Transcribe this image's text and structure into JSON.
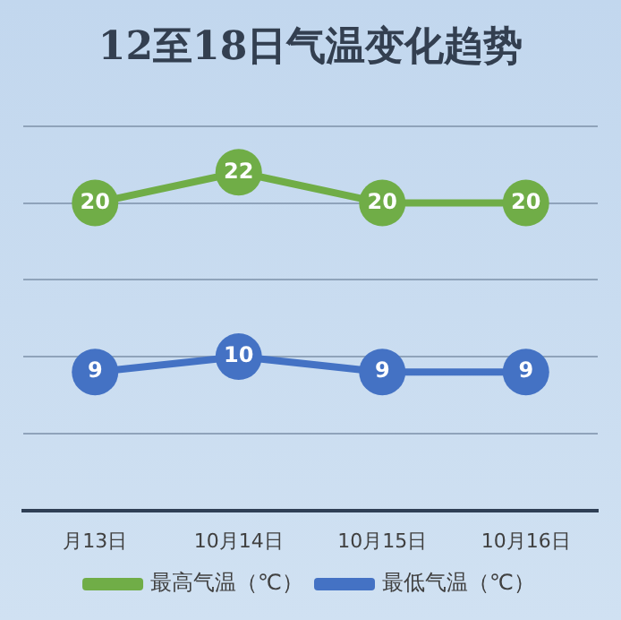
{
  "chart_data": {
    "type": "line",
    "title": "12至18日气温变化趋势",
    "categories": [
      "月13日",
      "10月14日",
      "10月15日",
      "10月16日"
    ],
    "series": [
      {
        "name": "最高气温（℃）",
        "color": "#70ad47",
        "values": [
          20,
          22,
          20,
          20
        ]
      },
      {
        "name": "最低气温（℃）",
        "color": "#4472c4",
        "values": [
          9,
          10,
          9,
          9
        ]
      }
    ],
    "ylim": [
      0,
      25
    ],
    "yticks": [
      {
        "value": 0,
        "label": null
      },
      {
        "value": 5,
        "label": null
      },
      {
        "value": 10,
        "label": null
      },
      {
        "value": 15,
        "label": null
      },
      {
        "value": 20,
        "label": null
      },
      {
        "value": 25,
        "label": null
      }
    ],
    "tick_labels": "x",
    "grid": "y",
    "legend": "bottom",
    "marker": "circle",
    "line_style": "solid",
    "data_labels": true
  }
}
